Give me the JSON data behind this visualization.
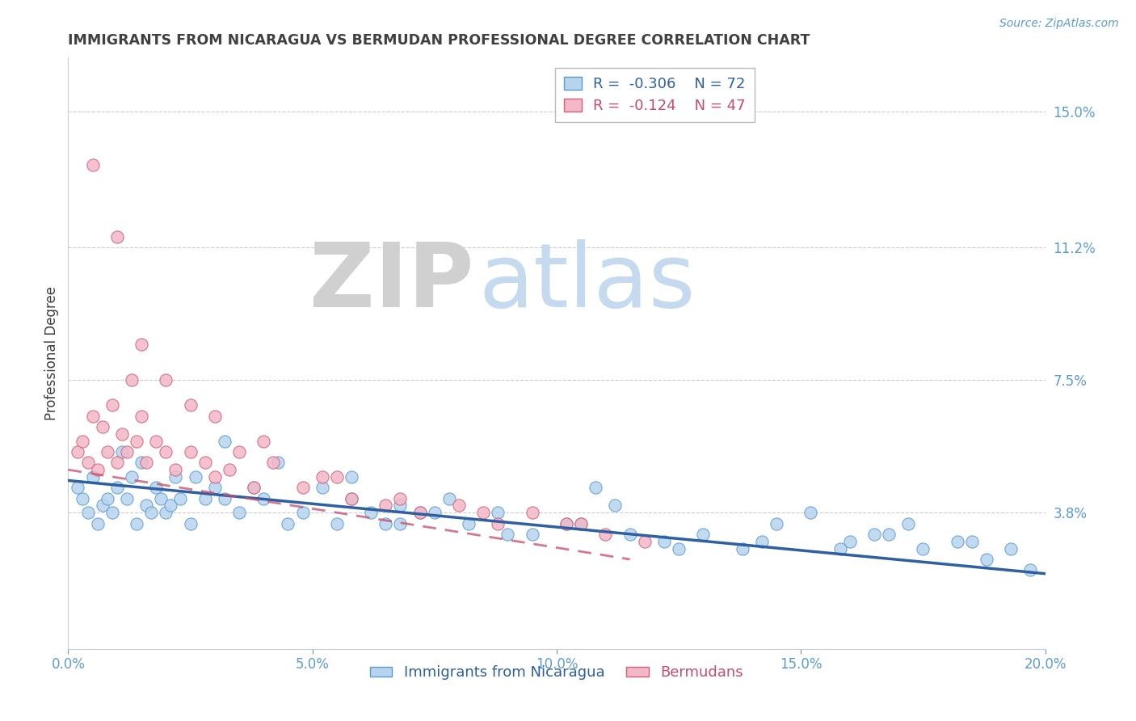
{
  "title": "IMMIGRANTS FROM NICARAGUA VS BERMUDAN PROFESSIONAL DEGREE CORRELATION CHART",
  "source": "Source: ZipAtlas.com",
  "ylabel": "Professional Degree",
  "xlabel_ticks": [
    "0.0%",
    "5.0%",
    "10.0%",
    "15.0%",
    "20.0%"
  ],
  "xlabel_vals": [
    0.0,
    5.0,
    10.0,
    15.0,
    20.0
  ],
  "ytick_labels": [
    "3.8%",
    "7.5%",
    "11.2%",
    "15.0%"
  ],
  "ytick_vals": [
    3.8,
    7.5,
    11.2,
    15.0
  ],
  "xlim": [
    0.0,
    20.0
  ],
  "ylim": [
    0.0,
    16.5
  ],
  "legend_blue_label": "Immigrants from Nicaragua",
  "legend_pink_label": "Bermudans",
  "R_blue": -0.306,
  "N_blue": 72,
  "R_pink": -0.124,
  "N_pink": 47,
  "blue_color": "#b8d4ed",
  "blue_edge_color": "#5b9bd5",
  "pink_color": "#f2b8c6",
  "pink_edge_color": "#d45f7a",
  "blue_line_color": "#2e5fa3",
  "pink_line_color": "#c84b6a",
  "title_color": "#404040",
  "axis_label_color": "#5b9bd5",
  "watermark_zip_color": "#d0d0d0",
  "watermark_atlas_color": "#c5d9ef",
  "background_color": "#ffffff",
  "blue_trend_start_x": 0.0,
  "blue_trend_start_y": 4.7,
  "blue_trend_end_x": 20.0,
  "blue_trend_end_y": 2.1,
  "pink_trend_start_x": 0.0,
  "pink_trend_start_y": 5.0,
  "pink_trend_end_x": 11.5,
  "pink_trend_end_y": 2.5,
  "blue_scatter_x": [
    0.2,
    0.3,
    0.4,
    0.5,
    0.6,
    0.7,
    0.8,
    0.9,
    1.0,
    1.1,
    1.2,
    1.3,
    1.4,
    1.5,
    1.6,
    1.7,
    1.8,
    1.9,
    2.0,
    2.1,
    2.2,
    2.3,
    2.5,
    2.6,
    2.8,
    3.0,
    3.2,
    3.5,
    3.8,
    4.0,
    4.3,
    4.8,
    5.2,
    5.5,
    5.8,
    6.2,
    6.5,
    6.8,
    7.2,
    7.8,
    8.2,
    8.8,
    9.5,
    10.2,
    10.8,
    11.5,
    12.2,
    13.0,
    13.8,
    14.5,
    15.2,
    16.0,
    16.8,
    17.5,
    18.2,
    18.8,
    19.3,
    19.7,
    4.5,
    5.8,
    7.5,
    9.0,
    10.5,
    12.5,
    14.2,
    15.8,
    17.2,
    18.5,
    3.2,
    6.8,
    11.2,
    16.5
  ],
  "blue_scatter_y": [
    4.5,
    4.2,
    3.8,
    4.8,
    3.5,
    4.0,
    4.2,
    3.8,
    4.5,
    5.5,
    4.2,
    4.8,
    3.5,
    5.2,
    4.0,
    3.8,
    4.5,
    4.2,
    3.8,
    4.0,
    4.8,
    4.2,
    3.5,
    4.8,
    4.2,
    4.5,
    5.8,
    3.8,
    4.5,
    4.2,
    5.2,
    3.8,
    4.5,
    3.5,
    4.2,
    3.8,
    3.5,
    4.0,
    3.8,
    4.2,
    3.5,
    3.8,
    3.2,
    3.5,
    4.5,
    3.2,
    3.0,
    3.2,
    2.8,
    3.5,
    3.8,
    3.0,
    3.2,
    2.8,
    3.0,
    2.5,
    2.8,
    2.2,
    3.5,
    4.8,
    3.8,
    3.2,
    3.5,
    2.8,
    3.0,
    2.8,
    3.5,
    3.0,
    4.2,
    3.5,
    4.0,
    3.2
  ],
  "pink_scatter_x": [
    0.2,
    0.3,
    0.4,
    0.5,
    0.6,
    0.7,
    0.8,
    0.9,
    1.0,
    1.1,
    1.2,
    1.3,
    1.4,
    1.5,
    1.6,
    1.8,
    2.0,
    2.2,
    2.5,
    2.8,
    3.0,
    3.3,
    3.8,
    4.2,
    4.8,
    5.2,
    5.8,
    6.5,
    7.2,
    8.0,
    8.8,
    9.5,
    10.2,
    11.0,
    0.5,
    1.0,
    1.5,
    2.0,
    2.5,
    3.0,
    3.5,
    4.0,
    5.5,
    6.8,
    8.5,
    10.5,
    11.8
  ],
  "pink_scatter_y": [
    5.5,
    5.8,
    5.2,
    6.5,
    5.0,
    6.2,
    5.5,
    6.8,
    5.2,
    6.0,
    5.5,
    7.5,
    5.8,
    6.5,
    5.2,
    5.8,
    5.5,
    5.0,
    5.5,
    5.2,
    4.8,
    5.0,
    4.5,
    5.2,
    4.5,
    4.8,
    4.2,
    4.0,
    3.8,
    4.0,
    3.5,
    3.8,
    3.5,
    3.2,
    13.5,
    11.5,
    8.5,
    7.5,
    6.8,
    6.5,
    5.5,
    5.8,
    4.8,
    4.2,
    3.8,
    3.5,
    3.0
  ]
}
